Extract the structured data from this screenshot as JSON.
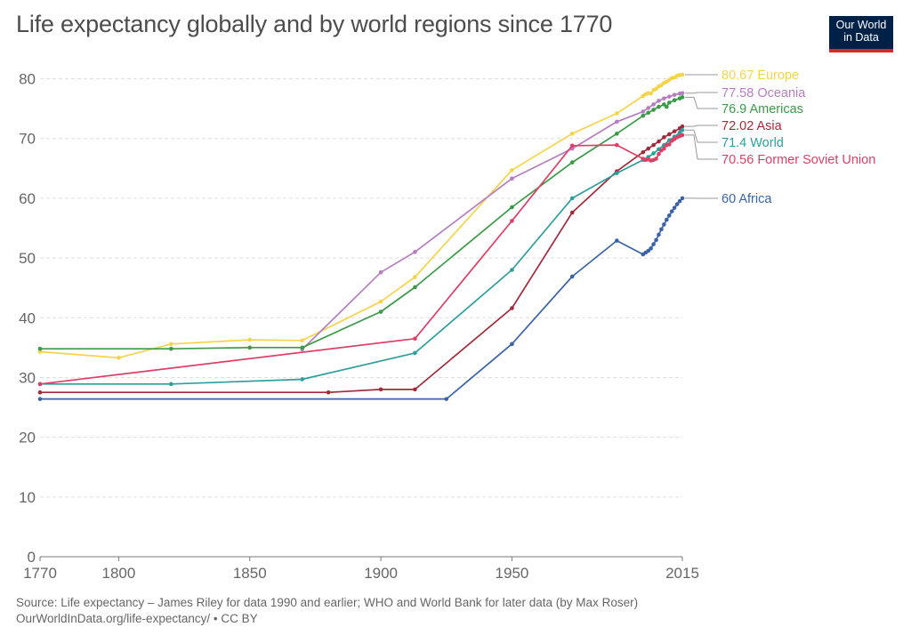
{
  "header": {
    "title": "Life expectancy globally and by world regions since 1770",
    "logo_line1": "Our World",
    "logo_line2": "in Data"
  },
  "footer": {
    "source": "Source: Life expectancy – James Riley for data 1990 and earlier; WHO and World Bank for later data (by Max Roser)",
    "url": "OurWorldInData.org/life-expectancy/ • CC BY"
  },
  "chart_data": {
    "type": "line",
    "title": "Life expectancy globally and by world regions since 1770",
    "xlabel": "",
    "ylabel": "",
    "xlim": [
      1770,
      2015
    ],
    "ylim": [
      0,
      80
    ],
    "x_ticks": [
      1770,
      1800,
      1850,
      1900,
      1950,
      2015
    ],
    "y_ticks": [
      0,
      10,
      20,
      30,
      40,
      50,
      60,
      70,
      80
    ],
    "grid": true,
    "legend": "right (end-of-line labels)",
    "series": [
      {
        "name": "Europe",
        "end_label": "80.67 Europe",
        "color": "#f5d44b",
        "points": [
          [
            1770,
            34.3
          ],
          [
            1800,
            33.3
          ],
          [
            1820,
            35.6
          ],
          [
            1850,
            36.3
          ],
          [
            1870,
            36.2
          ],
          [
            1900,
            42.7
          ],
          [
            1913,
            46.8
          ],
          [
            1950,
            64.7
          ],
          [
            1973,
            70.8
          ],
          [
            1990,
            74.2
          ],
          [
            2000,
            77.1
          ],
          [
            2001,
            77.4
          ],
          [
            2002,
            77.6
          ],
          [
            2003,
            77.5
          ],
          [
            2004,
            78.1
          ],
          [
            2005,
            78.3
          ],
          [
            2006,
            78.7
          ],
          [
            2007,
            78.9
          ],
          [
            2008,
            79.3
          ],
          [
            2009,
            79.5
          ],
          [
            2010,
            79.8
          ],
          [
            2011,
            80.1
          ],
          [
            2012,
            80.2
          ],
          [
            2013,
            80.5
          ],
          [
            2014,
            80.6
          ],
          [
            2015,
            80.67
          ]
        ]
      },
      {
        "name": "Oceania",
        "end_label": "77.58 Oceania",
        "color": "#b67dc0",
        "points": [
          [
            1870,
            34.7
          ],
          [
            1900,
            47.6
          ],
          [
            1913,
            51.0
          ],
          [
            1950,
            63.3
          ],
          [
            1973,
            68.3
          ],
          [
            1990,
            72.8
          ],
          [
            2000,
            74.5
          ],
          [
            2002,
            75.1
          ],
          [
            2004,
            75.7
          ],
          [
            2006,
            76.3
          ],
          [
            2008,
            76.7
          ],
          [
            2010,
            77.0
          ],
          [
            2012,
            77.3
          ],
          [
            2014,
            77.5
          ],
          [
            2015,
            77.58
          ]
        ]
      },
      {
        "name": "Americas",
        "end_label": "76.9 Americas",
        "color": "#3a9a47",
        "points": [
          [
            1770,
            34.8
          ],
          [
            1820,
            34.8
          ],
          [
            1850,
            35.0
          ],
          [
            1870,
            35.0
          ],
          [
            1900,
            41.0
          ],
          [
            1913,
            45.1
          ],
          [
            1950,
            58.5
          ],
          [
            1973,
            66.0
          ],
          [
            1990,
            70.8
          ],
          [
            2000,
            73.8
          ],
          [
            2002,
            74.3
          ],
          [
            2004,
            74.8
          ],
          [
            2006,
            75.3
          ],
          [
            2008,
            75.7
          ],
          [
            2009,
            75.3
          ],
          [
            2010,
            76.0
          ],
          [
            2012,
            76.4
          ],
          [
            2014,
            76.7
          ],
          [
            2015,
            76.9
          ]
        ]
      },
      {
        "name": "Asia",
        "end_label": "72.02 Asia",
        "color": "#a12b3a",
        "points": [
          [
            1770,
            27.5
          ],
          [
            1880,
            27.5
          ],
          [
            1900,
            28.0
          ],
          [
            1913,
            28.0
          ],
          [
            1950,
            41.6
          ],
          [
            1973,
            57.6
          ],
          [
            1990,
            64.5
          ],
          [
            2000,
            67.7
          ],
          [
            2002,
            68.3
          ],
          [
            2004,
            68.9
          ],
          [
            2006,
            69.5
          ],
          [
            2008,
            70.2
          ],
          [
            2010,
            70.7
          ],
          [
            2012,
            71.2
          ],
          [
            2014,
            71.7
          ],
          [
            2015,
            72.02
          ]
        ]
      },
      {
        "name": "World",
        "end_label": "71.4 World",
        "color": "#2e9e9c",
        "points": [
          [
            1770,
            28.9
          ],
          [
            1820,
            28.9
          ],
          [
            1870,
            29.7
          ],
          [
            1913,
            34.1
          ],
          [
            1950,
            48.0
          ],
          [
            1973,
            60.0
          ],
          [
            1990,
            64.2
          ],
          [
            2000,
            66.4
          ],
          [
            2002,
            66.9
          ],
          [
            2004,
            67.5
          ],
          [
            2006,
            68.2
          ],
          [
            2008,
            68.9
          ],
          [
            2010,
            69.7
          ],
          [
            2012,
            70.3
          ],
          [
            2014,
            71.0
          ],
          [
            2015,
            71.4
          ]
        ]
      },
      {
        "name": "Former Soviet Union",
        "end_label": "70.56 Former Soviet Union",
        "color": "#de3f66",
        "points": [
          [
            1770,
            28.9
          ],
          [
            1913,
            36.5
          ],
          [
            1950,
            56.2
          ],
          [
            1973,
            68.8
          ],
          [
            1990,
            68.9
          ],
          [
            2000,
            66.6
          ],
          [
            2001,
            66.4
          ],
          [
            2002,
            66.5
          ],
          [
            2003,
            66.3
          ],
          [
            2004,
            66.4
          ],
          [
            2005,
            66.6
          ],
          [
            2006,
            67.4
          ],
          [
            2007,
            68.0
          ],
          [
            2008,
            68.3
          ],
          [
            2009,
            68.9
          ],
          [
            2010,
            69.0
          ],
          [
            2011,
            69.6
          ],
          [
            2012,
            69.9
          ],
          [
            2013,
            70.2
          ],
          [
            2014,
            70.4
          ],
          [
            2015,
            70.56
          ]
        ]
      },
      {
        "name": "Africa",
        "end_label": "60 Africa",
        "color": "#3b63a8",
        "points": [
          [
            1770,
            26.4
          ],
          [
            1925,
            26.4
          ],
          [
            1950,
            35.6
          ],
          [
            1973,
            46.9
          ],
          [
            1990,
            52.9
          ],
          [
            2000,
            50.6
          ],
          [
            2001,
            50.9
          ],
          [
            2002,
            51.2
          ],
          [
            2003,
            51.6
          ],
          [
            2004,
            52.3
          ],
          [
            2005,
            53.0
          ],
          [
            2006,
            53.9
          ],
          [
            2007,
            54.8
          ],
          [
            2008,
            55.6
          ],
          [
            2009,
            56.4
          ],
          [
            2010,
            57.1
          ],
          [
            2011,
            57.8
          ],
          [
            2012,
            58.4
          ],
          [
            2013,
            59.0
          ],
          [
            2014,
            59.5
          ],
          [
            2015,
            60.0
          ]
        ]
      }
    ]
  }
}
